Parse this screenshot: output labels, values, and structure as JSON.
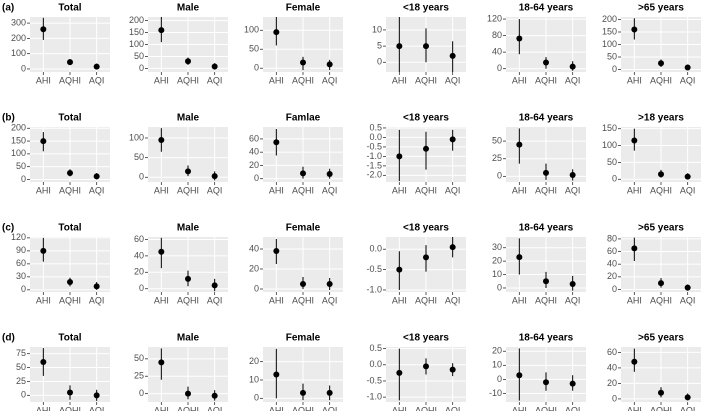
{
  "row_labels": [
    "(a)",
    "(b)",
    "(c)",
    "(d)"
  ],
  "chart_data": [
    {
      "type": "errorbar",
      "title": "Total",
      "categories": [
        "AHI",
        "AQHI",
        "AQI"
      ],
      "values": [
        260,
        45,
        15
      ],
      "low": [
        190,
        25,
        0
      ],
      "high": [
        335,
        65,
        35
      ],
      "ylim": [
        -20,
        340
      ],
      "yticks": [
        0,
        100,
        200,
        300
      ]
    },
    {
      "type": "errorbar",
      "title": "Male",
      "categories": [
        "AHI",
        "AQHI",
        "AQI"
      ],
      "values": [
        160,
        30,
        8
      ],
      "low": [
        110,
        15,
        -5
      ],
      "high": [
        215,
        45,
        22
      ],
      "ylim": [
        -15,
        215
      ],
      "yticks": [
        0,
        50,
        100,
        150,
        200
      ]
    },
    {
      "type": "errorbar",
      "title": "Female",
      "categories": [
        "AHI",
        "AQHI",
        "AQI"
      ],
      "values": [
        95,
        15,
        10
      ],
      "low": [
        60,
        -5,
        -5
      ],
      "high": [
        135,
        30,
        22
      ],
      "ylim": [
        -10,
        135
      ],
      "yticks": [
        0,
        50,
        100
      ]
    },
    {
      "type": "errorbar",
      "title": "<18 years",
      "categories": [
        "AHI",
        "AQHI",
        "AQI"
      ],
      "values": [
        5,
        5,
        2
      ],
      "low": [
        -3,
        0,
        -3
      ],
      "high": [
        14,
        10.5,
        6.5
      ],
      "ylim": [
        -3,
        14
      ],
      "yticks": [
        0,
        5,
        10
      ]
    },
    {
      "type": "errorbar",
      "title": "18-64 years",
      "categories": [
        "AHI",
        "AQHI",
        "AQI"
      ],
      "values": [
        73,
        15,
        5
      ],
      "low": [
        35,
        0,
        -5
      ],
      "high": [
        120,
        28,
        18
      ],
      "ylim": [
        -8,
        125
      ],
      "yticks": [
        0,
        40,
        80,
        120
      ]
    },
    {
      "type": "errorbar",
      "title": ">65 years",
      "categories": [
        "AHI",
        "AQHI",
        "AQI"
      ],
      "values": [
        160,
        25,
        8
      ],
      "low": [
        120,
        10,
        -2
      ],
      "high": [
        205,
        40,
        20
      ],
      "ylim": [
        -10,
        210
      ],
      "yticks": [
        0,
        50,
        100,
        150,
        200
      ]
    },
    {
      "type": "errorbar",
      "title": "Total",
      "categories": [
        "AHI",
        "AQHI",
        "AQI"
      ],
      "values": [
        150,
        25,
        12
      ],
      "low": [
        110,
        12,
        0
      ],
      "high": [
        185,
        40,
        25
      ],
      "ylim": [
        -10,
        205
      ],
      "yticks": [
        0,
        50,
        100,
        150,
        200
      ]
    },
    {
      "type": "errorbar",
      "title": "Male",
      "categories": [
        "AHI",
        "AQHI",
        "AQI"
      ],
      "values": [
        95,
        15,
        3
      ],
      "low": [
        65,
        3,
        -8
      ],
      "high": [
        125,
        30,
        15
      ],
      "ylim": [
        -12,
        128
      ],
      "yticks": [
        0,
        50,
        100
      ]
    },
    {
      "type": "errorbar",
      "title": "Famlae",
      "categories": [
        "AHI",
        "AQHI",
        "AQI"
      ],
      "values": [
        55,
        8,
        7
      ],
      "low": [
        35,
        0,
        0
      ],
      "high": [
        75,
        18,
        15
      ],
      "ylim": [
        -5,
        78
      ],
      "yticks": [
        0,
        20,
        40,
        60
      ]
    },
    {
      "type": "errorbar",
      "title": "<18 years",
      "categories": [
        "AHI",
        "AQHI",
        "AQI"
      ],
      "values": [
        -1.0,
        -0.6,
        -0.1
      ],
      "low": [
        -2.3,
        -1.7,
        -0.7
      ],
      "high": [
        0.4,
        0.3,
        0.4
      ],
      "ylim": [
        -2.35,
        0.55
      ],
      "yticks": [
        0.5,
        {
          "value": 0,
          "label": "0.0"
        },
        -0.5,
        {
          "value": -1,
          "label": "-1.0"
        },
        -1.5,
        {
          "value": -2,
          "label": "-2.0"
        }
      ]
    },
    {
      "type": "errorbar",
      "title": "18-64 years",
      "categories": [
        "AHI",
        "AQHI",
        "AQI"
      ],
      "values": [
        45,
        5,
        2
      ],
      "low": [
        18,
        -5,
        -6
      ],
      "high": [
        68,
        18,
        10
      ],
      "ylim": [
        -8,
        70
      ],
      "yticks": [
        0,
        25,
        50
      ]
    },
    {
      "type": "errorbar",
      "title": ">18 years",
      "categories": [
        "AHI",
        "AQHI",
        "AQI"
      ],
      "values": [
        115,
        15,
        8
      ],
      "low": [
        85,
        5,
        0
      ],
      "high": [
        150,
        28,
        18
      ],
      "ylim": [
        -8,
        155
      ],
      "yticks": [
        0,
        50,
        100,
        150
      ]
    },
    {
      "type": "errorbar",
      "title": "Total",
      "categories": [
        "AHI",
        "AQHI",
        "AQI"
      ],
      "values": [
        90,
        18,
        8
      ],
      "low": [
        65,
        8,
        0
      ],
      "high": [
        120,
        28,
        18
      ],
      "ylim": [
        -5,
        122
      ],
      "yticks": [
        0,
        30,
        60,
        90,
        120
      ]
    },
    {
      "type": "errorbar",
      "title": "Male",
      "categories": [
        "AHI",
        "AQHI",
        "AQI"
      ],
      "values": [
        45,
        12,
        4
      ],
      "low": [
        25,
        3,
        -3
      ],
      "high": [
        62,
        22,
        12
      ],
      "ylim": [
        -4,
        63
      ],
      "yticks": [
        0,
        20,
        40,
        60
      ]
    },
    {
      "type": "errorbar",
      "title": "Female",
      "categories": [
        "AHI",
        "AQHI",
        "AQI"
      ],
      "values": [
        38,
        5,
        5
      ],
      "low": [
        25,
        0,
        -1
      ],
      "high": [
        50,
        12,
        11
      ],
      "ylim": [
        -3,
        52
      ],
      "yticks": [
        0,
        20,
        40
      ]
    },
    {
      "type": "errorbar",
      "title": "<18 years",
      "categories": [
        "AHI",
        "AQHI",
        "AQI"
      ],
      "values": [
        -0.5,
        -0.2,
        0.05
      ],
      "low": [
        -1.0,
        -0.55,
        -0.2
      ],
      "high": [
        -0.05,
        0.1,
        0.3
      ],
      "ylim": [
        -1.05,
        0.3
      ],
      "yticks": [
        {
          "value": 0,
          "label": "0.0"
        },
        -0.5,
        {
          "value": -1,
          "label": "-1.0"
        }
      ]
    },
    {
      "type": "errorbar",
      "title": "18-64 years",
      "categories": [
        "AHI",
        "AQHI",
        "AQI"
      ],
      "values": [
        23,
        5,
        3
      ],
      "low": [
        10,
        0,
        -2
      ],
      "high": [
        37,
        12,
        9
      ],
      "ylim": [
        -3,
        38
      ],
      "yticks": [
        0,
        10,
        20,
        30
      ]
    },
    {
      "type": "errorbar",
      "title": ">65 years",
      "categories": [
        "AHI",
        "AQHI",
        "AQI"
      ],
      "values": [
        65,
        10,
        3
      ],
      "low": [
        45,
        3,
        -2
      ],
      "high": [
        82,
        18,
        8
      ],
      "ylim": [
        -4,
        83
      ],
      "yticks": [
        0,
        20,
        40,
        60,
        80
      ]
    },
    {
      "type": "errorbar",
      "title": "Total",
      "categories": [
        "AHI",
        "AQHI",
        "AQI"
      ],
      "values": [
        60,
        5,
        0
      ],
      "low": [
        35,
        -8,
        -10
      ],
      "high": [
        85,
        18,
        10
      ],
      "ylim": [
        -12,
        87
      ],
      "yticks": [
        0,
        25,
        50,
        75
      ]
    },
    {
      "type": "errorbar",
      "title": "Male",
      "categories": [
        "AHI",
        "AQHI",
        "AQI"
      ],
      "values": [
        45,
        0,
        -3
      ],
      "low": [
        20,
        -8,
        -10
      ],
      "high": [
        65,
        10,
        5
      ],
      "ylim": [
        -12,
        67
      ],
      "yticks": [
        0,
        25,
        50
      ]
    },
    {
      "type": "errorbar",
      "title": "Female",
      "categories": [
        "AHI",
        "AQHI",
        "AQI"
      ],
      "values": [
        13,
        3,
        3
      ],
      "low": [
        0,
        -1,
        -1
      ],
      "high": [
        27,
        8,
        7
      ],
      "ylim": [
        -2,
        28
      ],
      "yticks": [
        0,
        10,
        20
      ]
    },
    {
      "type": "errorbar",
      "title": "<18 years",
      "categories": [
        "AHI",
        "AQHI",
        "AQI"
      ],
      "values": [
        -0.25,
        -0.05,
        -0.15
      ],
      "low": [
        -1.1,
        -0.3,
        -0.35
      ],
      "high": [
        0.5,
        0.2,
        0.05
      ],
      "ylim": [
        -1.15,
        0.55
      ],
      "yticks": [
        0.5,
        {
          "value": 0,
          "label": "0.0"
        },
        -0.5,
        {
          "value": -1,
          "label": "-1.0"
        }
      ]
    },
    {
      "type": "errorbar",
      "title": "18-64 years",
      "categories": [
        "AHI",
        "AQHI",
        "AQI"
      ],
      "values": [
        3,
        -2,
        -3
      ],
      "low": [
        -15,
        -8,
        -8
      ],
      "high": [
        22,
        5,
        3
      ],
      "ylim": [
        -16,
        23
      ],
      "yticks": [
        -10,
        0,
        10,
        20
      ]
    },
    {
      "type": "errorbar",
      "title": ">65 years",
      "categories": [
        "AHI",
        "AQHI",
        "AQI"
      ],
      "values": [
        48,
        8,
        2
      ],
      "low": [
        35,
        2,
        -2
      ],
      "high": [
        65,
        15,
        7
      ],
      "ylim": [
        -4,
        67
      ],
      "yticks": [
        0,
        20,
        40,
        60
      ]
    }
  ]
}
